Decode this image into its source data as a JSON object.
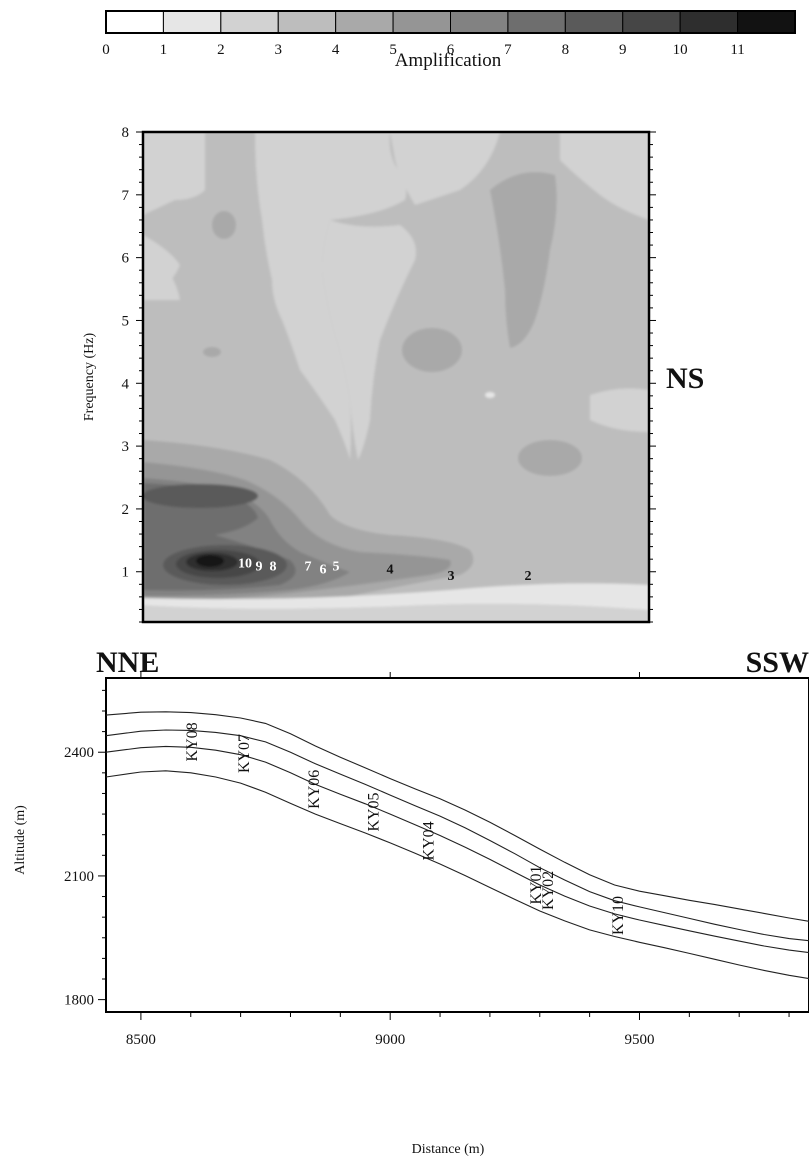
{
  "colorbar": {
    "title": "Amplification",
    "ticks": [
      "0",
      "1",
      "2",
      "3",
      "4",
      "5",
      "6",
      "7",
      "8",
      "9",
      "10",
      "11"
    ],
    "colors": [
      "#ffffff",
      "#e6e6e6",
      "#d2d2d2",
      "#bdbdbd",
      "#a9a9a9",
      "#959595",
      "#828282",
      "#6e6e6e",
      "#5a5a5a",
      "#464646",
      "#2e2e2e",
      "#121212"
    ]
  },
  "component_label": "NS",
  "chart_data": [
    {
      "type": "heatmap",
      "title": "",
      "xlabel": "",
      "ylabel": "Frequency (Hz)",
      "ylim": [
        0.2,
        8
      ],
      "yticks": [
        "1",
        "2",
        "3",
        "4",
        "5",
        "6",
        "7",
        "8"
      ],
      "value_range": [
        0,
        11
      ],
      "legend": "top",
      "contour_labels": [
        {
          "text": "10",
          "freq": 1.15,
          "value": 10
        },
        {
          "text": "9",
          "freq": 1.1,
          "value": 9
        },
        {
          "text": "8",
          "freq": 1.1,
          "value": 8
        },
        {
          "text": "7",
          "freq": 1.1,
          "value": 7
        },
        {
          "text": "6",
          "freq": 1.05,
          "value": 6
        },
        {
          "text": "5",
          "freq": 1.1,
          "value": 5
        },
        {
          "text": "4",
          "freq": 1.05,
          "value": 4
        },
        {
          "text": "3",
          "freq": 0.95,
          "value": 3
        },
        {
          "text": "2",
          "freq": 0.95,
          "value": 2
        }
      ]
    },
    {
      "type": "line",
      "title": "",
      "xlabel": "Distance (m)",
      "ylabel": "Altitude (m)",
      "xlim": [
        8430,
        9840
      ],
      "ylim": [
        1770,
        2580
      ],
      "xticks": [
        "8500",
        "9000",
        "9500"
      ],
      "yticks": [
        "1800",
        "2100",
        "2400"
      ],
      "direction_left": "NNE",
      "direction_right": "SSW",
      "series": [
        {
          "x": [
            8430,
            8500,
            8550,
            8600,
            8650,
            8700,
            8750,
            8800,
            8850,
            8900,
            8950,
            9000,
            9050,
            9100,
            9150,
            9200,
            9250,
            9300,
            9350,
            9400,
            9450,
            9500,
            9550,
            9600,
            9650,
            9700,
            9750,
            9800,
            9840
          ],
          "y": [
            2490,
            2497,
            2498,
            2496,
            2491,
            2483,
            2470,
            2445,
            2415,
            2388,
            2362,
            2336,
            2311,
            2287,
            2260,
            2230,
            2198,
            2165,
            2133,
            2103,
            2078,
            2063,
            2052,
            2041,
            2031,
            2020,
            2009,
            1998,
            1990
          ]
        },
        {
          "x": [
            8430,
            8500,
            8550,
            8600,
            8650,
            8700,
            8750,
            8800,
            8850,
            8900,
            8950,
            9000,
            9050,
            9100,
            9150,
            9200,
            9250,
            9300,
            9350,
            9400,
            9450,
            9500,
            9550,
            9600,
            9650,
            9700,
            9750,
            9800,
            9840
          ],
          "y": [
            2440,
            2451,
            2454,
            2453,
            2448,
            2440,
            2425,
            2400,
            2372,
            2347,
            2322,
            2296,
            2270,
            2245,
            2217,
            2186,
            2154,
            2120,
            2090,
            2062,
            2040,
            2025,
            2011,
            1997,
            1983,
            1970,
            1958,
            1948,
            1943
          ]
        },
        {
          "x": [
            8430,
            8500,
            8550,
            8600,
            8650,
            8700,
            8750,
            8800,
            8850,
            8900,
            8950,
            9000,
            9050,
            9100,
            9150,
            9200,
            9250,
            9300,
            9350,
            9400,
            9450,
            9500,
            9550,
            9600,
            9650,
            9700,
            9750,
            9800,
            9840
          ],
          "y": [
            2400,
            2411,
            2414,
            2412,
            2405,
            2394,
            2376,
            2350,
            2322,
            2298,
            2275,
            2250,
            2224,
            2198,
            2170,
            2140,
            2109,
            2078,
            2051,
            2027,
            2008,
            1993,
            1980,
            1967,
            1954,
            1942,
            1930,
            1920,
            1914
          ]
        },
        {
          "x": [
            8430,
            8500,
            8550,
            8600,
            8650,
            8700,
            8750,
            8800,
            8850,
            8900,
            8950,
            9000,
            9050,
            9100,
            9150,
            9200,
            9250,
            9300,
            9350,
            9400,
            9450,
            9500,
            9550,
            9600,
            9650,
            9700,
            9750,
            9800,
            9840
          ],
          "y": [
            2340,
            2352,
            2355,
            2350,
            2340,
            2325,
            2303,
            2276,
            2250,
            2227,
            2204,
            2180,
            2155,
            2129,
            2101,
            2072,
            2043,
            2015,
            1991,
            1969,
            1953,
            1939,
            1926,
            1912,
            1898,
            1884,
            1871,
            1859,
            1851
          ]
        }
      ],
      "stations": [
        {
          "name": "KY08",
          "x": 8600,
          "y": 2425
        },
        {
          "name": "KY07",
          "x": 8705,
          "y": 2397
        },
        {
          "name": "KY06",
          "x": 8845,
          "y": 2310
        },
        {
          "name": "KY05",
          "x": 8965,
          "y": 2255
        },
        {
          "name": "KY04",
          "x": 9075,
          "y": 2185
        },
        {
          "name": "KY01",
          "x": 9290,
          "y": 2078
        },
        {
          "name": "KY02",
          "x": 9315,
          "y": 2065
        },
        {
          "name": "KY10",
          "x": 9455,
          "y": 2004
        }
      ]
    }
  ]
}
